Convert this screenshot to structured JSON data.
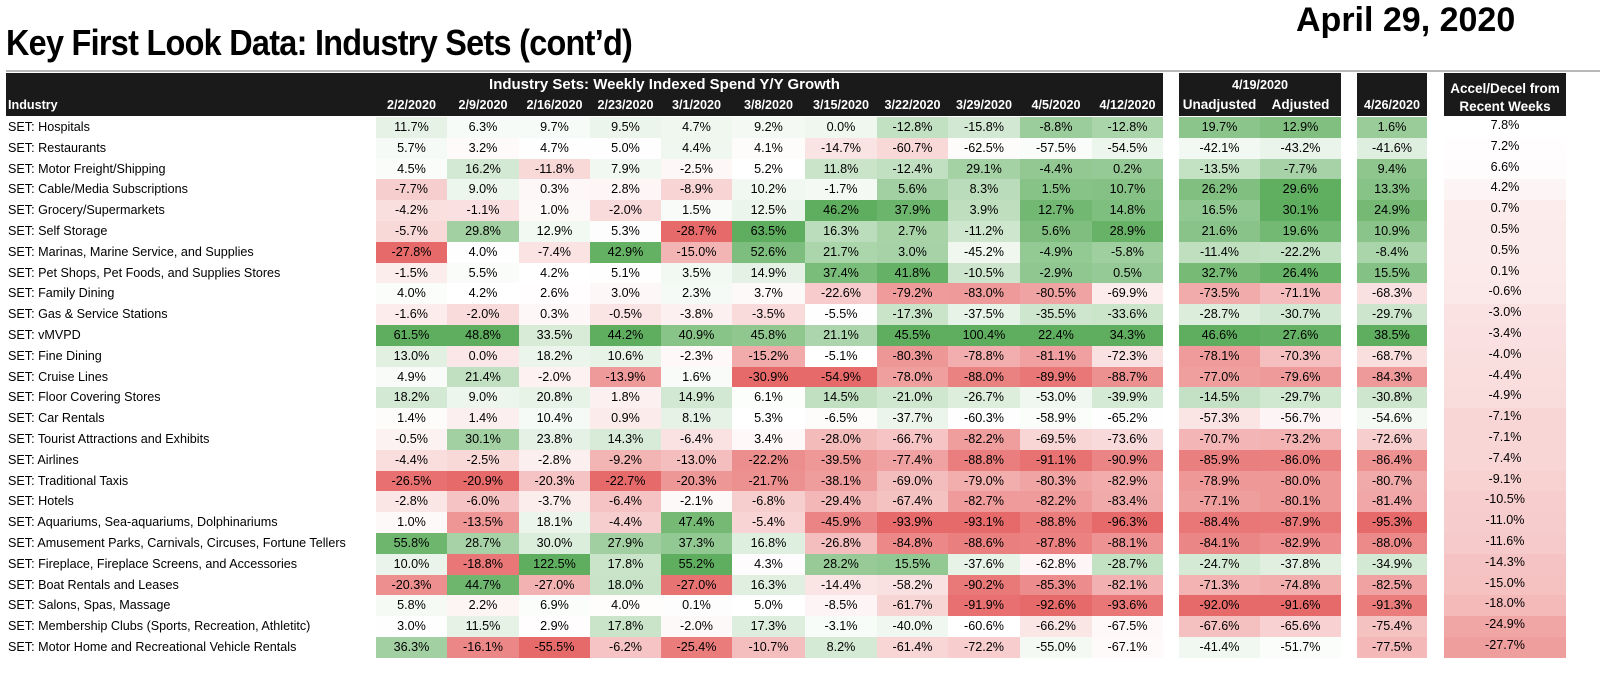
{
  "title": "Key First Look Data: Industry Sets (cont’d)",
  "date": "April 29, 2020",
  "colors": {
    "header_bg": "#1a1a1a",
    "positive": "#5fae5f",
    "negative": "#e76a6a",
    "neutral": "#ffffff"
  },
  "chart_data": {
    "type": "table",
    "title": "Industry Sets: Weekly Indexed Spend Y/Y Growth",
    "row_header": "Industry",
    "weeks": [
      "2/2/2020",
      "2/9/2020",
      "2/16/2020",
      "2/23/2020",
      "3/1/2020",
      "3/8/2020",
      "3/15/2020",
      "3/22/2020",
      "3/29/2020",
      "4/5/2020",
      "4/12/2020"
    ],
    "group2_title": "4/19/2020",
    "group2_columns": [
      "Unadjusted",
      "Adjusted"
    ],
    "group3_column": "4/26/2020",
    "accel_header": [
      "Accel/Decel from",
      "Recent Weeks"
    ],
    "rows": [
      {
        "industry": "SET: Hospitals",
        "weekly": [
          "11.7%",
          "6.3%",
          "9.7%",
          "9.5%",
          "4.7%",
          "9.2%",
          "0.0%",
          "-12.8%",
          "-15.8%",
          "-8.8%",
          "-12.8%"
        ],
        "unadjusted": "19.7%",
        "adjusted": "12.9%",
        "latest": "1.6%",
        "accel": "7.8%"
      },
      {
        "industry": "SET: Restaurants",
        "weekly": [
          "5.7%",
          "3.2%",
          "4.7%",
          "5.0%",
          "4.4%",
          "4.1%",
          "-14.7%",
          "-60.7%",
          "-62.5%",
          "-57.5%",
          "-54.5%"
        ],
        "unadjusted": "-42.1%",
        "adjusted": "-43.2%",
        "latest": "-41.6%",
        "accel": "7.2%"
      },
      {
        "industry": "SET: Motor Freight/Shipping",
        "weekly": [
          "4.5%",
          "16.2%",
          "-11.8%",
          "7.9%",
          "-2.5%",
          "5.2%",
          "11.8%",
          "-12.4%",
          "29.1%",
          "-4.4%",
          "0.2%"
        ],
        "unadjusted": "-13.5%",
        "adjusted": "-7.7%",
        "latest": "9.4%",
        "accel": "6.6%"
      },
      {
        "industry": "SET: Cable/Media Subscriptions",
        "weekly": [
          "-7.7%",
          "9.0%",
          "0.3%",
          "2.8%",
          "-8.9%",
          "10.2%",
          "-1.7%",
          "5.6%",
          "8.3%",
          "1.5%",
          "10.7%"
        ],
        "unadjusted": "26.2%",
        "adjusted": "29.6%",
        "latest": "13.3%",
        "accel": "4.2%"
      },
      {
        "industry": "SET: Grocery/Supermarkets",
        "weekly": [
          "-4.2%",
          "-1.1%",
          "1.0%",
          "-2.0%",
          "1.5%",
          "12.5%",
          "46.2%",
          "37.9%",
          "3.9%",
          "12.7%",
          "14.8%"
        ],
        "unadjusted": "16.5%",
        "adjusted": "30.1%",
        "latest": "24.9%",
        "accel": "0.7%"
      },
      {
        "industry": "SET: Self Storage",
        "weekly": [
          "-5.7%",
          "29.8%",
          "12.9%",
          "5.3%",
          "-28.7%",
          "63.5%",
          "16.3%",
          "2.7%",
          "-11.2%",
          "5.6%",
          "28.9%"
        ],
        "unadjusted": "21.6%",
        "adjusted": "19.6%",
        "latest": "10.9%",
        "accel": "0.5%"
      },
      {
        "industry": "SET: Marinas, Marine Service, and Supplies",
        "weekly": [
          "-27.8%",
          "4.0%",
          "-7.4%",
          "42.9%",
          "-15.0%",
          "52.6%",
          "21.7%",
          "3.0%",
          "-45.2%",
          "-4.9%",
          "-5.8%"
        ],
        "unadjusted": "-11.4%",
        "adjusted": "-22.2%",
        "latest": "-8.4%",
        "accel": "0.5%"
      },
      {
        "industry": "SET: Pet Shops, Pet Foods, and Supplies Stores",
        "weekly": [
          "-1.5%",
          "5.5%",
          "4.2%",
          "5.1%",
          "3.5%",
          "14.9%",
          "37.4%",
          "41.8%",
          "-10.5%",
          "-2.9%",
          "0.5%"
        ],
        "unadjusted": "32.7%",
        "adjusted": "26.4%",
        "latest": "15.5%",
        "accel": "0.1%"
      },
      {
        "industry": "SET: Family Dining",
        "weekly": [
          "4.0%",
          "4.2%",
          "2.6%",
          "3.0%",
          "2.3%",
          "3.7%",
          "-22.6%",
          "-79.2%",
          "-83.0%",
          "-80.5%",
          "-69.9%"
        ],
        "unadjusted": "-73.5%",
        "adjusted": "-71.1%",
        "latest": "-68.3%",
        "accel": "-0.6%"
      },
      {
        "industry": "SET: Gas & Service Stations",
        "weekly": [
          "-1.6%",
          "-2.0%",
          "0.3%",
          "-0.5%",
          "-3.8%",
          "-3.5%",
          "-5.5%",
          "-17.3%",
          "-37.5%",
          "-35.5%",
          "-33.6%"
        ],
        "unadjusted": "-28.7%",
        "adjusted": "-30.7%",
        "latest": "-29.7%",
        "accel": "-3.0%"
      },
      {
        "industry": "SET: vMVPD",
        "weekly": [
          "61.5%",
          "48.8%",
          "33.5%",
          "44.2%",
          "40.9%",
          "45.8%",
          "21.1%",
          "45.5%",
          "100.4%",
          "22.4%",
          "34.3%"
        ],
        "unadjusted": "46.6%",
        "adjusted": "27.6%",
        "latest": "38.5%",
        "accel": "-3.4%"
      },
      {
        "industry": "SET: Fine Dining",
        "weekly": [
          "13.0%",
          "0.0%",
          "18.2%",
          "10.6%",
          "-2.3%",
          "-15.2%",
          "-5.1%",
          "-80.3%",
          "-78.8%",
          "-81.1%",
          "-72.3%"
        ],
        "unadjusted": "-78.1%",
        "adjusted": "-70.3%",
        "latest": "-68.7%",
        "accel": "-4.0%"
      },
      {
        "industry": "SET: Cruise Lines",
        "weekly": [
          "4.9%",
          "21.4%",
          "-2.0%",
          "-13.9%",
          "1.6%",
          "-30.9%",
          "-54.9%",
          "-78.0%",
          "-88.0%",
          "-89.9%",
          "-88.7%"
        ],
        "unadjusted": "-77.0%",
        "adjusted": "-79.6%",
        "latest": "-84.3%",
        "accel": "-4.4%"
      },
      {
        "industry": "SET: Floor Covering Stores",
        "weekly": [
          "18.2%",
          "9.0%",
          "20.8%",
          "1.8%",
          "14.9%",
          "6.1%",
          "14.5%",
          "-21.0%",
          "-26.7%",
          "-53.0%",
          "-39.9%"
        ],
        "unadjusted": "-14.5%",
        "adjusted": "-29.7%",
        "latest": "-30.8%",
        "accel": "-4.9%"
      },
      {
        "industry": "SET: Car Rentals",
        "weekly": [
          "1.4%",
          "1.4%",
          "10.4%",
          "0.9%",
          "8.1%",
          "5.3%",
          "-6.5%",
          "-37.7%",
          "-60.3%",
          "-58.9%",
          "-65.2%"
        ],
        "unadjusted": "-57.3%",
        "adjusted": "-56.7%",
        "latest": "-54.6%",
        "accel": "-7.1%"
      },
      {
        "industry": "SET: Tourist Attractions and Exhibits",
        "weekly": [
          "-0.5%",
          "30.1%",
          "23.8%",
          "14.3%",
          "-6.4%",
          "3.4%",
          "-28.0%",
          "-66.7%",
          "-82.2%",
          "-69.5%",
          "-73.6%"
        ],
        "unadjusted": "-70.7%",
        "adjusted": "-73.2%",
        "latest": "-72.6%",
        "accel": "-7.1%"
      },
      {
        "industry": "SET: Airlines",
        "weekly": [
          "-4.4%",
          "-2.5%",
          "-2.8%",
          "-9.2%",
          "-13.0%",
          "-22.2%",
          "-39.5%",
          "-77.4%",
          "-88.8%",
          "-91.1%",
          "-90.9%"
        ],
        "unadjusted": "-85.9%",
        "adjusted": "-86.0%",
        "latest": "-86.4%",
        "accel": "-7.4%"
      },
      {
        "industry": "SET: Traditional Taxis",
        "weekly": [
          "-26.5%",
          "-20.9%",
          "-20.3%",
          "-22.7%",
          "-20.3%",
          "-21.7%",
          "-38.1%",
          "-69.0%",
          "-79.0%",
          "-80.3%",
          "-82.9%"
        ],
        "unadjusted": "-78.9%",
        "adjusted": "-80.0%",
        "latest": "-80.7%",
        "accel": "-9.1%"
      },
      {
        "industry": "SET: Hotels",
        "weekly": [
          "-2.8%",
          "-6.0%",
          "-3.7%",
          "-6.4%",
          "-2.1%",
          "-6.8%",
          "-29.4%",
          "-67.4%",
          "-82.7%",
          "-82.2%",
          "-83.4%"
        ],
        "unadjusted": "-77.1%",
        "adjusted": "-80.1%",
        "latest": "-81.4%",
        "accel": "-10.5%"
      },
      {
        "industry": "SET: Aquariums, Sea-aquariums, Dolphinariums",
        "weekly": [
          "1.0%",
          "-13.5%",
          "18.1%",
          "-4.4%",
          "47.4%",
          "-5.4%",
          "-45.9%",
          "-93.9%",
          "-93.1%",
          "-88.8%",
          "-96.3%"
        ],
        "unadjusted": "-88.4%",
        "adjusted": "-87.9%",
        "latest": "-95.3%",
        "accel": "-11.0%"
      },
      {
        "industry": "SET: Amusement Parks, Carnivals, Circuses, Fortune Tellers",
        "weekly": [
          "55.8%",
          "28.7%",
          "30.0%",
          "27.9%",
          "37.3%",
          "16.8%",
          "-26.8%",
          "-84.8%",
          "-88.6%",
          "-87.8%",
          "-88.1%"
        ],
        "unadjusted": "-84.1%",
        "adjusted": "-82.9%",
        "latest": "-88.0%",
        "accel": "-11.6%"
      },
      {
        "industry": "SET: Fireplace, Fireplace Screens, and Accessories",
        "weekly": [
          "10.0%",
          "-18.8%",
          "122.5%",
          "17.8%",
          "55.2%",
          "4.3%",
          "28.2%",
          "15.5%",
          "-37.6%",
          "-62.8%",
          "-28.7%"
        ],
        "unadjusted": "-24.7%",
        "adjusted": "-37.8%",
        "latest": "-34.9%",
        "accel": "-14.3%"
      },
      {
        "industry": "SET: Boat Rentals and Leases",
        "weekly": [
          "-20.3%",
          "44.7%",
          "-27.0%",
          "18.0%",
          "-27.0%",
          "16.3%",
          "-14.4%",
          "-58.2%",
          "-90.2%",
          "-85.3%",
          "-82.1%"
        ],
        "unadjusted": "-71.3%",
        "adjusted": "-74.8%",
        "latest": "-82.5%",
        "accel": "-15.0%"
      },
      {
        "industry": "SET: Salons, Spas, Massage",
        "weekly": [
          "5.8%",
          "2.2%",
          "6.9%",
          "4.0%",
          "0.1%",
          "5.0%",
          "-8.5%",
          "-61.7%",
          "-91.9%",
          "-92.6%",
          "-93.6%"
        ],
        "unadjusted": "-92.0%",
        "adjusted": "-91.6%",
        "latest": "-91.3%",
        "accel": "-18.0%"
      },
      {
        "industry": "SET: Membership Clubs (Sports, Recreation, Athletitc)",
        "weekly": [
          "3.0%",
          "11.5%",
          "2.9%",
          "17.8%",
          "-2.0%",
          "17.3%",
          "-3.1%",
          "-40.0%",
          "-60.6%",
          "-66.2%",
          "-67.5%"
        ],
        "unadjusted": "-67.6%",
        "adjusted": "-65.6%",
        "latest": "-75.4%",
        "accel": "-24.9%"
      },
      {
        "industry": "SET: Motor Home and Recreational Vehicle Rentals",
        "weekly": [
          "36.3%",
          "-16.1%",
          "-55.5%",
          "-6.2%",
          "-25.4%",
          "-10.7%",
          "8.2%",
          "-61.4%",
          "-72.2%",
          "-55.0%",
          "-67.1%"
        ],
        "unadjusted": "-41.4%",
        "adjusted": "-51.7%",
        "latest": "-77.5%",
        "accel": "-27.7%"
      }
    ]
  }
}
